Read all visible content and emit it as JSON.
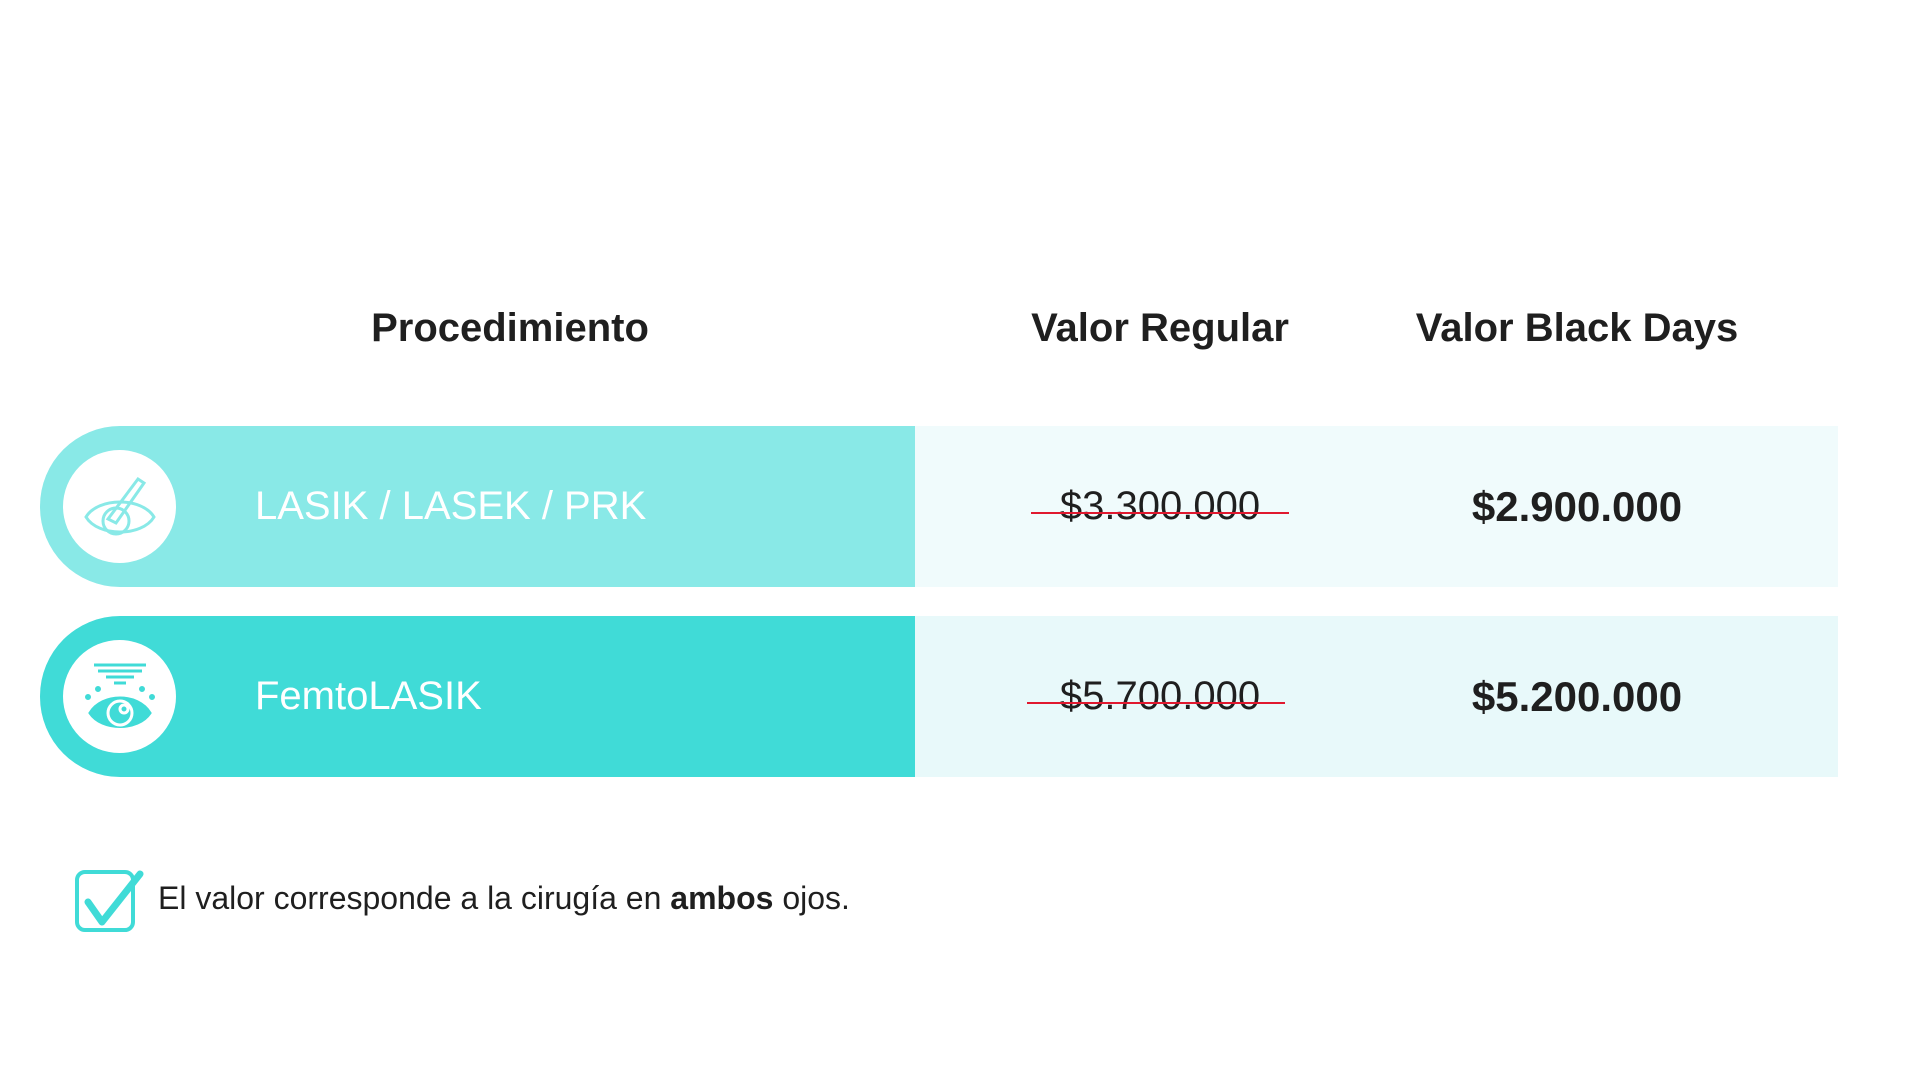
{
  "headers": {
    "procedure": "Procedimiento",
    "regular": "Valor Regular",
    "promo": "Valor Black Days"
  },
  "rows": [
    {
      "name": "LASIK / LASEK / PRK",
      "regular": "$3.300.000",
      "promo": "$2.900.000",
      "icon": "eye-scalpel-icon",
      "color": "#89E9E7",
      "bg": "#F0FBFC"
    },
    {
      "name": "FemtoLASIK",
      "regular": "$5.700.000",
      "promo": "$5.200.000",
      "icon": "eye-laser-icon",
      "color": "#40DBD7",
      "bg": "#E8F9FA"
    }
  ],
  "note": {
    "before": "El valor corresponde a la cirugía en ",
    "bold": "ambos",
    "after": " ojos.",
    "icon": "checkbox-check-icon"
  },
  "colors": {
    "strike": "#E0192F",
    "accent": "#40DBD7"
  }
}
